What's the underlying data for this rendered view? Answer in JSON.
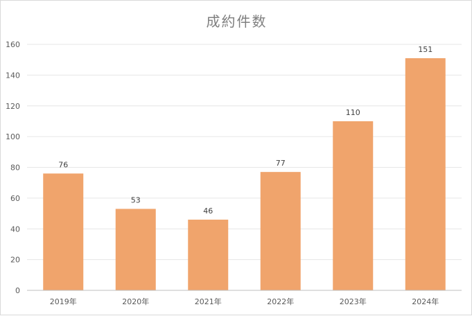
{
  "chart_data": {
    "type": "bar",
    "title": "成約件数",
    "xlabel": "",
    "ylabel": "",
    "categories": [
      "2019年",
      "2020年",
      "2021年",
      "2022年",
      "2023年",
      "2024年"
    ],
    "values": [
      76,
      53,
      46,
      77,
      110,
      151
    ],
    "ylim": [
      0,
      160
    ],
    "yticks": [
      0,
      20,
      40,
      60,
      80,
      100,
      120,
      140,
      160
    ],
    "grid": true,
    "legend": "none",
    "data_labels": true,
    "bar_color": "#f0a46c",
    "grid_color": "#e6e6e6",
    "axis_color": "#bfbfbf"
  }
}
